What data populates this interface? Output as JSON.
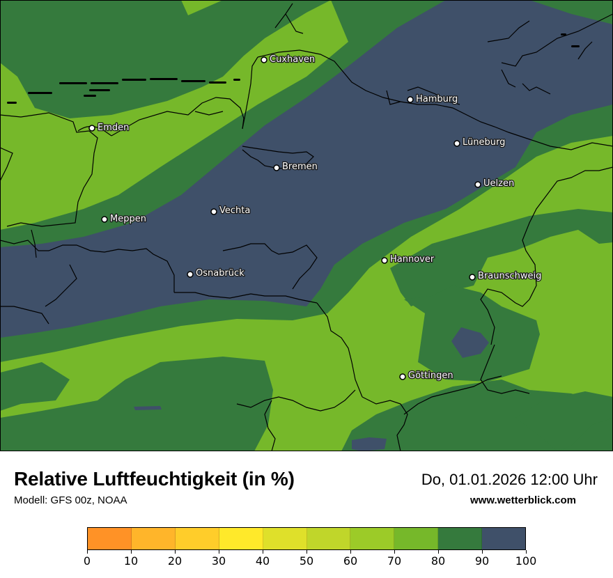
{
  "title": "Relative Luftfeuchtigkeit (in %)",
  "model": "Modell: GFS 00z, NOAA",
  "datetime": "Do, 01.01.2026 12:00 Uhr",
  "website": "www.wetterblick.com",
  "colors": {
    "band_70_80": "#76b82a",
    "band_80_90": "#357a3d",
    "band_90_100": "#3f5069",
    "border_line": "#000000"
  },
  "cities": [
    {
      "name": "Cuxhaven"
    },
    {
      "name": "Hamburg"
    },
    {
      "name": "Emden"
    },
    {
      "name": "Lüneburg"
    },
    {
      "name": "Bremen"
    },
    {
      "name": "Uelzen"
    },
    {
      "name": "Vechta"
    },
    {
      "name": "Meppen"
    },
    {
      "name": "Hannover"
    },
    {
      "name": "Osnabrück"
    },
    {
      "name": "Braunschweig"
    },
    {
      "name": "Göttingen"
    }
  ],
  "legend": {
    "segments": [
      {
        "from": 0,
        "to": 10,
        "color": "#ff9226"
      },
      {
        "from": 10,
        "to": 20,
        "color": "#ffb52a"
      },
      {
        "from": 20,
        "to": 30,
        "color": "#ffcd2a"
      },
      {
        "from": 30,
        "to": 40,
        "color": "#ffe92a"
      },
      {
        "from": 40,
        "to": 50,
        "color": "#dfe02a"
      },
      {
        "from": 50,
        "to": 60,
        "color": "#c0d62a"
      },
      {
        "from": 60,
        "to": 70,
        "color": "#9ccb28"
      },
      {
        "from": 70,
        "to": 80,
        "color": "#76b82a"
      },
      {
        "from": 80,
        "to": 90,
        "color": "#357a3d"
      },
      {
        "from": 90,
        "to": 100,
        "color": "#3f5069"
      }
    ],
    "ticks": [
      "0",
      "10",
      "20",
      "30",
      "40",
      "50",
      "60",
      "70",
      "80",
      "90",
      "100"
    ]
  }
}
